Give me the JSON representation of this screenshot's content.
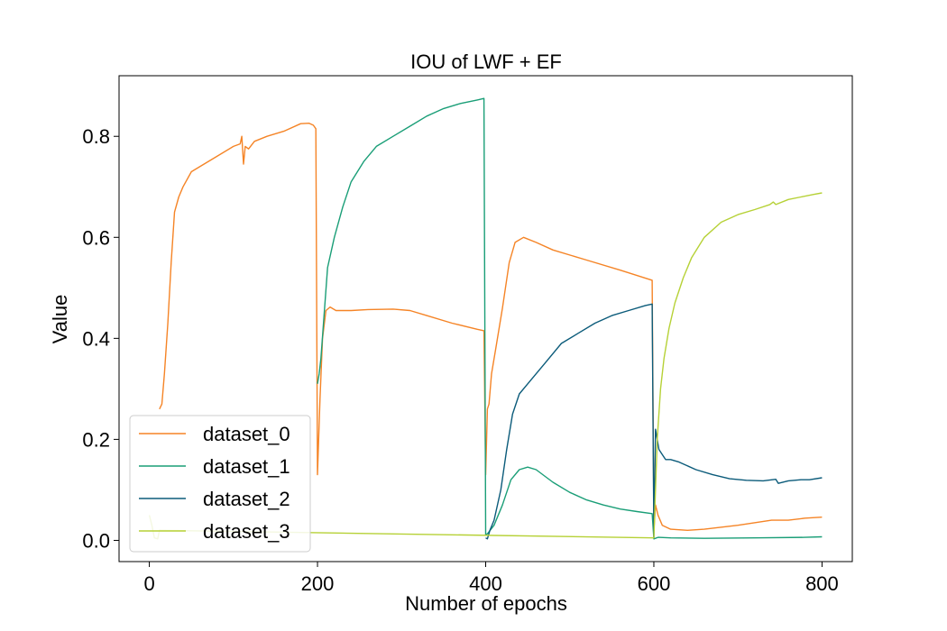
{
  "chart_data": {
    "type": "line",
    "title": "IOU of LWF + EF",
    "xlabel": "Number of epochs",
    "ylabel": "Value",
    "xlim": [
      -36,
      836
    ],
    "ylim": [
      -0.042,
      0.92
    ],
    "xticks": [
      0,
      200,
      400,
      600,
      800
    ],
    "xtick_labels": [
      "0",
      "200",
      "400",
      "600",
      "800"
    ],
    "yticks": [
      0.0,
      0.2,
      0.4,
      0.6,
      0.8
    ],
    "ytick_labels": [
      "0.0",
      "0.2",
      "0.4",
      "0.6",
      "0.8"
    ],
    "grid": false,
    "legend_position": "lower-left",
    "series": [
      {
        "name": "dataset_0",
        "color": "#f58426",
        "points": [
          [
            12,
            0.26
          ],
          [
            15,
            0.27
          ],
          [
            18,
            0.33
          ],
          [
            22,
            0.43
          ],
          [
            26,
            0.55
          ],
          [
            30,
            0.65
          ],
          [
            35,
            0.68
          ],
          [
            40,
            0.7
          ],
          [
            50,
            0.73
          ],
          [
            60,
            0.74
          ],
          [
            80,
            0.76
          ],
          [
            100,
            0.78
          ],
          [
            108,
            0.785
          ],
          [
            110,
            0.8
          ],
          [
            112,
            0.745
          ],
          [
            114,
            0.78
          ],
          [
            118,
            0.775
          ],
          [
            125,
            0.79
          ],
          [
            140,
            0.8
          ],
          [
            160,
            0.81
          ],
          [
            180,
            0.825
          ],
          [
            190,
            0.826
          ],
          [
            195,
            0.822
          ],
          [
            198,
            0.815
          ],
          [
            200,
            0.13
          ],
          [
            203,
            0.28
          ],
          [
            206,
            0.4
          ],
          [
            210,
            0.455
          ],
          [
            215,
            0.462
          ],
          [
            222,
            0.455
          ],
          [
            240,
            0.455
          ],
          [
            260,
            0.457
          ],
          [
            290,
            0.458
          ],
          [
            310,
            0.455
          ],
          [
            330,
            0.445
          ],
          [
            360,
            0.43
          ],
          [
            390,
            0.418
          ],
          [
            398,
            0.415
          ],
          [
            400,
            0.13
          ],
          [
            402,
            0.26
          ],
          [
            404,
            0.27
          ],
          [
            407,
            0.33
          ],
          [
            412,
            0.38
          ],
          [
            420,
            0.46
          ],
          [
            428,
            0.55
          ],
          [
            435,
            0.59
          ],
          [
            445,
            0.6
          ],
          [
            460,
            0.59
          ],
          [
            480,
            0.575
          ],
          [
            520,
            0.555
          ],
          [
            560,
            0.535
          ],
          [
            598,
            0.515
          ],
          [
            600,
            0.02
          ],
          [
            602,
            0.07
          ],
          [
            605,
            0.05
          ],
          [
            610,
            0.03
          ],
          [
            620,
            0.022
          ],
          [
            640,
            0.02
          ],
          [
            660,
            0.022
          ],
          [
            700,
            0.03
          ],
          [
            740,
            0.04
          ],
          [
            760,
            0.04
          ],
          [
            780,
            0.044
          ],
          [
            800,
            0.046
          ]
        ]
      },
      {
        "name": "dataset_1",
        "color": "#1a9e77",
        "points": [
          [
            200,
            0.31
          ],
          [
            202,
            0.33
          ],
          [
            204,
            0.36
          ],
          [
            208,
            0.45
          ],
          [
            212,
            0.54
          ],
          [
            220,
            0.6
          ],
          [
            230,
            0.66
          ],
          [
            240,
            0.71
          ],
          [
            255,
            0.75
          ],
          [
            270,
            0.78
          ],
          [
            290,
            0.8
          ],
          [
            310,
            0.82
          ],
          [
            330,
            0.84
          ],
          [
            350,
            0.855
          ],
          [
            370,
            0.865
          ],
          [
            390,
            0.872
          ],
          [
            398,
            0.875
          ],
          [
            400,
            0.01
          ],
          [
            403,
            0.015
          ],
          [
            410,
            0.03
          ],
          [
            420,
            0.07
          ],
          [
            430,
            0.12
          ],
          [
            440,
            0.14
          ],
          [
            450,
            0.145
          ],
          [
            460,
            0.14
          ],
          [
            480,
            0.115
          ],
          [
            500,
            0.095
          ],
          [
            520,
            0.08
          ],
          [
            540,
            0.07
          ],
          [
            560,
            0.062
          ],
          [
            580,
            0.057
          ],
          [
            598,
            0.053
          ],
          [
            600,
            0.003
          ],
          [
            605,
            0.006
          ],
          [
            620,
            0.005
          ],
          [
            660,
            0.004
          ],
          [
            720,
            0.005
          ],
          [
            780,
            0.006
          ],
          [
            800,
            0.007
          ]
        ]
      },
      {
        "name": "dataset_2",
        "color": "#0b5b7a",
        "points": [
          [
            400,
            0.005
          ],
          [
            402,
            0.003
          ],
          [
            405,
            0.02
          ],
          [
            410,
            0.04
          ],
          [
            418,
            0.1
          ],
          [
            425,
            0.18
          ],
          [
            432,
            0.25
          ],
          [
            440,
            0.29
          ],
          [
            450,
            0.31
          ],
          [
            470,
            0.35
          ],
          [
            490,
            0.39
          ],
          [
            510,
            0.41
          ],
          [
            530,
            0.43
          ],
          [
            550,
            0.445
          ],
          [
            570,
            0.455
          ],
          [
            590,
            0.465
          ],
          [
            598,
            0.468
          ],
          [
            600,
            0.005
          ],
          [
            602,
            0.22
          ],
          [
            606,
            0.18
          ],
          [
            610,
            0.17
          ],
          [
            614,
            0.16
          ],
          [
            620,
            0.16
          ],
          [
            630,
            0.155
          ],
          [
            650,
            0.14
          ],
          [
            670,
            0.13
          ],
          [
            690,
            0.122
          ],
          [
            710,
            0.119
          ],
          [
            730,
            0.118
          ],
          [
            745,
            0.121
          ],
          [
            748,
            0.113
          ],
          [
            760,
            0.118
          ],
          [
            775,
            0.12
          ],
          [
            785,
            0.12
          ],
          [
            800,
            0.124
          ]
        ]
      },
      {
        "name": "dataset_3",
        "color": "#b6d136",
        "points": [
          [
            0,
            0.05
          ],
          [
            3,
            0.03
          ],
          [
            6,
            0.005
          ],
          [
            10,
            0.003
          ],
          [
            12,
            0.02
          ],
          [
            600,
            0.005
          ],
          [
            602,
            0.1
          ],
          [
            604,
            0.2
          ],
          [
            608,
            0.3
          ],
          [
            612,
            0.36
          ],
          [
            618,
            0.42
          ],
          [
            625,
            0.47
          ],
          [
            635,
            0.52
          ],
          [
            645,
            0.56
          ],
          [
            660,
            0.6
          ],
          [
            680,
            0.63
          ],
          [
            700,
            0.645
          ],
          [
            720,
            0.655
          ],
          [
            738,
            0.665
          ],
          [
            742,
            0.67
          ],
          [
            745,
            0.665
          ],
          [
            760,
            0.675
          ],
          [
            775,
            0.68
          ],
          [
            790,
            0.685
          ],
          [
            800,
            0.688
          ]
        ]
      }
    ]
  }
}
